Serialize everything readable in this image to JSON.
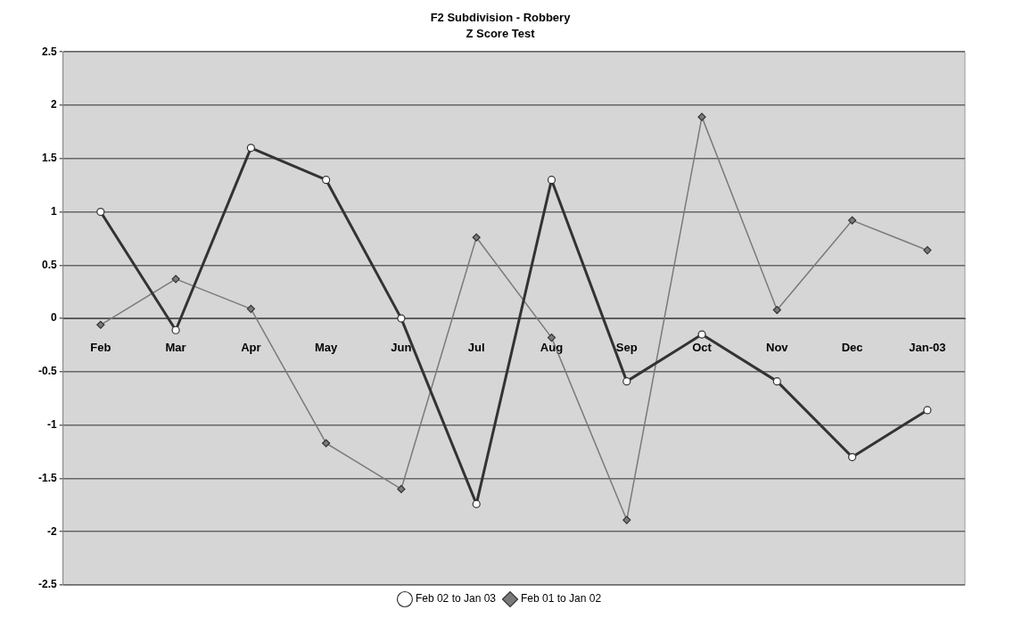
{
  "chart_data": {
    "type": "line",
    "title": "F2 Subdivision - Robbery",
    "subtitle": "Z Score Test",
    "categories": [
      "Feb",
      "Mar",
      "Apr",
      "May",
      "Jun",
      "Jul",
      "Aug",
      "Sep",
      "Oct",
      "Nov",
      "Dec",
      "Jan-03"
    ],
    "series": [
      {
        "name": "Feb 02 to Jan 03",
        "color": "#333333",
        "marker": "circle",
        "values": [
          1.0,
          -0.11,
          1.6,
          1.3,
          0.0,
          -1.74,
          1.3,
          -0.59,
          -0.15,
          -0.59,
          -1.3,
          -0.86
        ]
      },
      {
        "name": "Feb 01 to Jan 02",
        "color": "#7a7a7a",
        "marker": "diamond",
        "values": [
          -0.06,
          0.37,
          0.09,
          -1.17,
          -1.6,
          0.76,
          -0.18,
          -1.89,
          1.89,
          0.08,
          0.92,
          0.64
        ]
      }
    ],
    "ylim": [
      -2.5,
      2.5
    ],
    "yticks": [
      -2.5,
      -2,
      -1.5,
      -1,
      -0.5,
      0,
      0.5,
      1,
      1.5,
      2,
      2.5
    ],
    "grid": "y",
    "legend": "bottom",
    "line_style": "solid"
  }
}
